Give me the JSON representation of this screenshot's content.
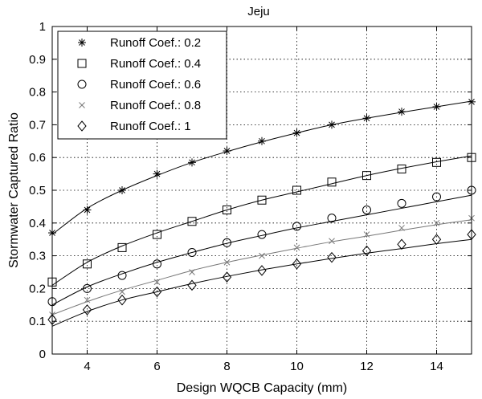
{
  "chart_data": {
    "type": "line",
    "title": "Jeju",
    "xlabel": "Design WQCB Capacity (mm)",
    "ylabel": "Stormwater Captured Ratio",
    "xlim": [
      3,
      15
    ],
    "ylim": [
      0,
      1
    ],
    "xticks": [
      "4",
      "6",
      "8",
      "10",
      "12",
      "14"
    ],
    "yticks": [
      "0",
      "0.1",
      "0.2",
      "0.3",
      "0.4",
      "0.5",
      "0.6",
      "0.7",
      "0.8",
      "0.9",
      "1"
    ],
    "grid": "on",
    "legend_position": "top-left",
    "series": [
      {
        "name": "Runoff Coef.: 0.2",
        "marker": "star",
        "line_color": "#000000",
        "x": [
          3,
          4,
          5,
          6,
          7,
          8,
          9,
          10,
          11,
          12,
          13,
          14,
          15
        ],
        "points": [
          0.37,
          0.44,
          0.5,
          0.55,
          0.585,
          0.62,
          0.65,
          0.675,
          0.7,
          0.72,
          0.74,
          0.755,
          0.77
        ],
        "curve": [
          0.365,
          0.445,
          0.5,
          0.545,
          0.585,
          0.618,
          0.648,
          0.675,
          0.7,
          0.72,
          0.738,
          0.755,
          0.772
        ]
      },
      {
        "name": "Runoff Coef.: 0.4",
        "marker": "square",
        "line_color": "#000000",
        "x": [
          3,
          4,
          5,
          6,
          7,
          8,
          9,
          10,
          11,
          12,
          13,
          14,
          15
        ],
        "points": [
          0.22,
          0.275,
          0.325,
          0.365,
          0.405,
          0.44,
          0.47,
          0.5,
          0.525,
          0.545,
          0.565,
          0.585,
          0.6
        ],
        "curve": [
          0.21,
          0.28,
          0.33,
          0.37,
          0.405,
          0.44,
          0.47,
          0.495,
          0.52,
          0.545,
          0.567,
          0.587,
          0.605
        ]
      },
      {
        "name": "Runoff Coef.: 0.6",
        "marker": "circle",
        "line_color": "#000000",
        "x": [
          3,
          4,
          5,
          6,
          7,
          8,
          9,
          10,
          11,
          12,
          13,
          14,
          15
        ],
        "points": [
          0.16,
          0.2,
          0.24,
          0.275,
          0.31,
          0.34,
          0.365,
          0.39,
          0.415,
          0.44,
          0.46,
          0.48,
          0.5
        ],
        "curve": [
          0.15,
          0.205,
          0.245,
          0.28,
          0.31,
          0.338,
          0.362,
          0.385,
          0.405,
          0.425,
          0.445,
          0.465,
          0.485
        ]
      },
      {
        "name": "Runoff Coef.: 0.8",
        "marker": "x",
        "line_color": "#777777",
        "x": [
          3,
          4,
          5,
          6,
          7,
          8,
          9,
          10,
          11,
          12,
          13,
          14,
          15
        ],
        "points": [
          0.12,
          0.165,
          0.19,
          0.22,
          0.25,
          0.28,
          0.3,
          0.325,
          0.345,
          0.365,
          0.385,
          0.4,
          0.415
        ],
        "curve": [
          0.12,
          0.16,
          0.195,
          0.225,
          0.255,
          0.28,
          0.302,
          0.323,
          0.343,
          0.36,
          0.378,
          0.395,
          0.41
        ]
      },
      {
        "name": "Runoff Coef.: 1",
        "marker": "diamond",
        "line_color": "#000000",
        "x": [
          3,
          4,
          5,
          6,
          7,
          8,
          9,
          10,
          11,
          12,
          13,
          14,
          15
        ],
        "points": [
          0.105,
          0.135,
          0.165,
          0.19,
          0.21,
          0.235,
          0.255,
          0.275,
          0.295,
          0.315,
          0.335,
          0.35,
          0.365
        ],
        "curve": [
          0.085,
          0.13,
          0.165,
          0.19,
          0.215,
          0.237,
          0.257,
          0.275,
          0.292,
          0.308,
          0.322,
          0.337,
          0.35
        ]
      }
    ]
  }
}
